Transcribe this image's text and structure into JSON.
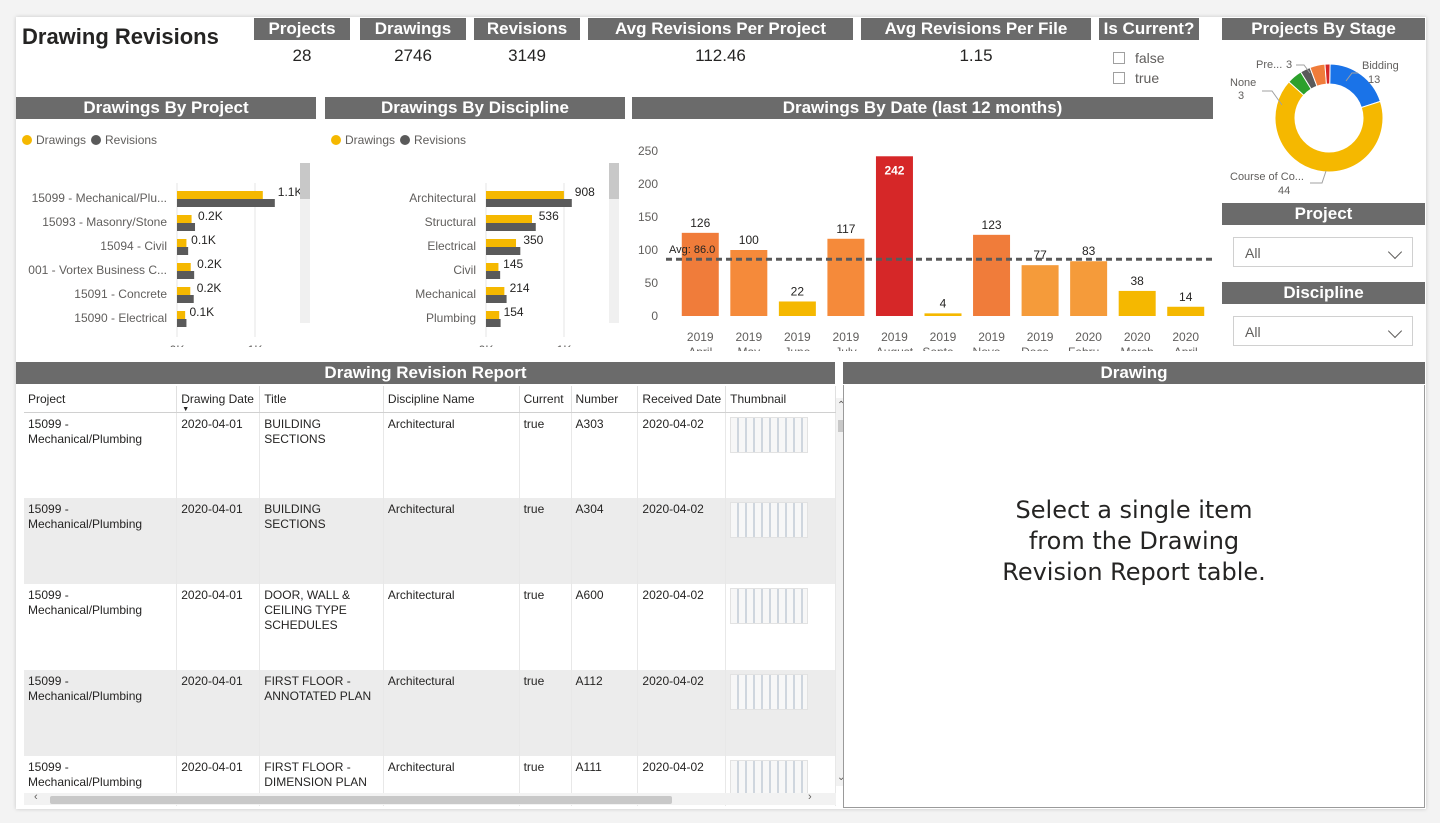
{
  "title": "Drawing Revisions",
  "kpis": [
    {
      "label": "Projects",
      "value": "28"
    },
    {
      "label": "Drawings",
      "value": "2746"
    },
    {
      "label": "Revisions",
      "value": "3149"
    },
    {
      "label": "Avg Revisions Per Project",
      "value": "112.46"
    },
    {
      "label": "Avg Revisions Per File",
      "value": "1.15"
    }
  ],
  "is_current": {
    "label": "Is Current?",
    "options": [
      "false",
      "true"
    ]
  },
  "projects_by_stage": {
    "label": "Projects By Stage",
    "slices": [
      {
        "name": "Bidding",
        "value": 13,
        "color": "#1a73e8"
      },
      {
        "name": "Course of Co...",
        "value": 44,
        "color": "#f5b800"
      },
      {
        "name": "None",
        "value": 3,
        "color": "#2ca02c"
      },
      {
        "name": "",
        "value": 2,
        "color": "#5a5a5a"
      },
      {
        "name": "Pre...",
        "value": 3,
        "color": "#f07c3a"
      },
      {
        "name": "",
        "value": 1,
        "color": "#d62728"
      }
    ],
    "labels": {
      "bidding": "Bidding",
      "bidding_val": "13",
      "course": "Course of Co...",
      "course_val": "44",
      "none": "None",
      "none_val": "3",
      "pre": "Pre...",
      "pre_val": "3"
    }
  },
  "project_slicer": {
    "label": "Project",
    "value": "All"
  },
  "discipline_slicer": {
    "label": "Discipline",
    "value": "All"
  },
  "legend": {
    "drawings": "Drawings",
    "revisions": "Revisions"
  },
  "colors": {
    "drawings": "#f5b800",
    "revisions": "#5a5a5a",
    "header": "#6b6b6b"
  },
  "drawings_by_project": {
    "label": "Drawings By Project",
    "categories": [
      "15099 - Mechanical/Plu...",
      "15093 - Masonry/Stone",
      "15094 - Civil",
      "001 - Vortex Business C...",
      "15091 - Concrete",
      "15090 - Electrical"
    ],
    "value_labels": [
      "1.1K",
      "0.2K",
      "0.1K",
      "0.2K",
      "0.2K",
      "0.1K"
    ],
    "drawings": [
      1000,
      170,
      110,
      160,
      155,
      95
    ],
    "revisions": [
      1140,
      210,
      130,
      200,
      195,
      110
    ],
    "xticks": [
      "0K",
      "1K"
    ],
    "xmax": 1000
  },
  "drawings_by_discipline": {
    "label": "Drawings By Discipline",
    "categories": [
      "Architectural",
      "Structural",
      "Electrical",
      "Civil",
      "Mechanical",
      "Plumbing"
    ],
    "value_labels": [
      "908",
      "536",
      "350",
      "145",
      "214",
      "154"
    ],
    "drawings": [
      908,
      536,
      350,
      145,
      214,
      154
    ],
    "revisions": [
      1000,
      580,
      400,
      165,
      240,
      170
    ],
    "xticks": [
      "0K",
      "1K"
    ],
    "xmax": 1000
  },
  "chart_data": {
    "type": "bar",
    "title": "Drawings By Date (last 12 months)",
    "categories": [
      "2019 April",
      "2019 May",
      "2019 June",
      "2019 July",
      "2019 August",
      "2019 Septe...",
      "2019 Nove...",
      "2019 Dece...",
      "2020 Febru...",
      "2020 March",
      "2020 April"
    ],
    "values": [
      126,
      100,
      22,
      117,
      242,
      4,
      123,
      77,
      83,
      38,
      14
    ],
    "avg_label": "Avg: 86.0",
    "average": 86.0,
    "ylim": [
      0,
      250
    ],
    "yticks": [
      "0",
      "50",
      "100",
      "150",
      "200",
      "250"
    ],
    "colors": [
      "#f07c3a",
      "#f58a3a",
      "#f5b800",
      "#f58a3a",
      "#d62728",
      "#f5b800",
      "#f07c3a",
      "#f59b3a",
      "#f59b3a",
      "#f5b800",
      "#f5b800"
    ]
  },
  "report": {
    "label": "Drawing Revision Report",
    "columns": [
      "Project",
      "Drawing Date",
      "Title",
      "Discipline Name",
      "Current",
      "Number",
      "Received Date",
      "Thumbnail"
    ],
    "rows": [
      [
        "15099 - Mechanical/Plumbing",
        "2020-04-01",
        "BUILDING SECTIONS",
        "Architectural",
        "true",
        "A303",
        "2020-04-02"
      ],
      [
        "15099 - Mechanical/Plumbing",
        "2020-04-01",
        "BUILDING SECTIONS",
        "Architectural",
        "true",
        "A304",
        "2020-04-02"
      ],
      [
        "15099 - Mechanical/Plumbing",
        "2020-04-01",
        "DOOR, WALL & CEILING TYPE SCHEDULES",
        "Architectural",
        "true",
        "A600",
        "2020-04-02"
      ],
      [
        "15099 - Mechanical/Plumbing",
        "2020-04-01",
        "FIRST FLOOR - ANNOTATED PLAN",
        "Architectural",
        "true",
        "A112",
        "2020-04-02"
      ],
      [
        "15099 - Mechanical/Plumbing",
        "2020-04-01",
        "FIRST FLOOR - DIMENSION PLAN",
        "Architectural",
        "true",
        "A111",
        "2020-04-02"
      ]
    ]
  },
  "drawing_panel": {
    "label": "Drawing",
    "message": "Select a single item from the Drawing Revision Report table."
  }
}
